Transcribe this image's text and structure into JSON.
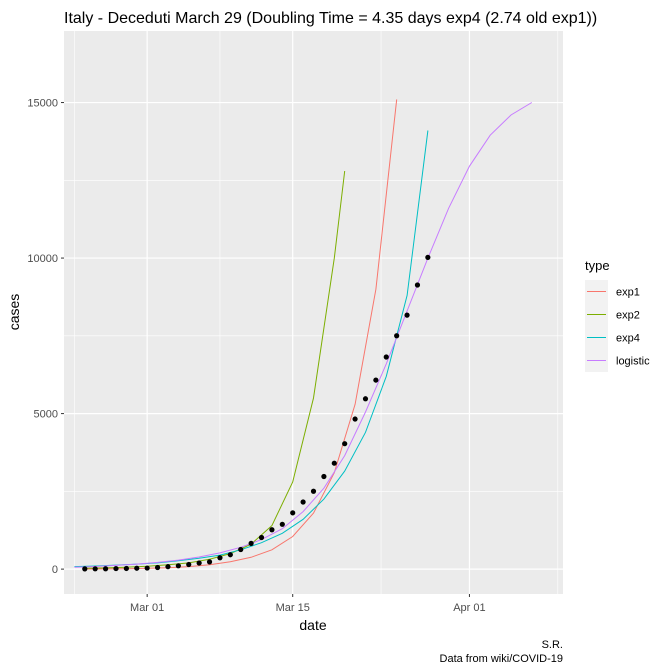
{
  "chart_data": {
    "type": "line",
    "title": "Italy - Deceduti March 29 (Doubling Time = 4.35 days exp4 (2.74 old exp1))",
    "xlabel": "date",
    "ylabel": "cases",
    "x_ticks": [
      {
        "label": "Mar 01",
        "date": "2020-03-01"
      },
      {
        "label": "Mar 15",
        "date": "2020-03-15"
      },
      {
        "label": "Apr 01",
        "date": "2020-04-01"
      }
    ],
    "y_ticks": [
      0,
      5000,
      10000,
      15000
    ],
    "xlim": [
      "2020-02-22",
      "2020-04-10"
    ],
    "ylim": [
      -800,
      17300
    ],
    "grid": true,
    "legend": {
      "title": "type",
      "position": "right"
    },
    "colors": {
      "panel_bg": "#ebebeb",
      "grid": "#ffffff",
      "exp1": "#F8766D",
      "exp2": "#7CAE00",
      "exp4": "#00BFC4",
      "logistic": "#C77CFF",
      "points": "#000000"
    },
    "series": [
      {
        "name": "exp1",
        "x": [
          "2020-02-24",
          "2020-02-26",
          "2020-02-28",
          "2020-03-01",
          "2020-03-03",
          "2020-03-05",
          "2020-03-07",
          "2020-03-09",
          "2020-03-11",
          "2020-03-13",
          "2020-03-15",
          "2020-03-17",
          "2020-03-19",
          "2020-03-21",
          "2020-03-23",
          "2020-03-25"
        ],
        "y": [
          5,
          8,
          14,
          25,
          45,
          80,
          140,
          240,
          380,
          620,
          1050,
          1800,
          3100,
          5300,
          9000,
          15100
        ]
      },
      {
        "name": "exp2",
        "x": [
          "2020-02-24",
          "2020-02-26",
          "2020-02-28",
          "2020-03-01",
          "2020-03-03",
          "2020-03-05",
          "2020-03-07",
          "2020-03-09",
          "2020-03-11",
          "2020-03-13",
          "2020-03-15",
          "2020-03-17",
          "2020-03-19",
          "2020-03-20"
        ],
        "y": [
          25,
          40,
          60,
          90,
          140,
          200,
          320,
          500,
          800,
          1400,
          2800,
          5500,
          10000,
          12800
        ]
      },
      {
        "name": "exp4",
        "x": [
          "2020-02-23",
          "2020-02-25",
          "2020-02-27",
          "2020-02-29",
          "2020-03-02",
          "2020-03-04",
          "2020-03-06",
          "2020-03-08",
          "2020-03-10",
          "2020-03-12",
          "2020-03-14",
          "2020-03-16",
          "2020-03-18",
          "2020-03-20",
          "2020-03-22",
          "2020-03-24",
          "2020-03-26",
          "2020-03-28"
        ],
        "y": [
          80,
          100,
          130,
          160,
          200,
          270,
          350,
          450,
          620,
          850,
          1150,
          1600,
          2250,
          3150,
          4400,
          6200,
          8800,
          14100
        ]
      },
      {
        "name": "logistic",
        "x": [
          "2020-02-23",
          "2020-02-25",
          "2020-02-27",
          "2020-02-29",
          "2020-03-02",
          "2020-03-04",
          "2020-03-06",
          "2020-03-08",
          "2020-03-10",
          "2020-03-12",
          "2020-03-14",
          "2020-03-16",
          "2020-03-18",
          "2020-03-20",
          "2020-03-22",
          "2020-03-24",
          "2020-03-26",
          "2020-03-28",
          "2020-03-30",
          "2020-04-01",
          "2020-04-03",
          "2020-04-05",
          "2020-04-07"
        ],
        "y": [
          60,
          85,
          120,
          160,
          215,
          290,
          390,
          520,
          700,
          950,
          1300,
          1850,
          2600,
          3650,
          5050,
          6600,
          8300,
          10000,
          11600,
          12950,
          13950,
          14600,
          15000
        ]
      },
      {
        "name": "observed",
        "x": [
          "2020-02-24",
          "2020-02-25",
          "2020-02-26",
          "2020-02-27",
          "2020-02-28",
          "2020-02-29",
          "2020-03-01",
          "2020-03-02",
          "2020-03-03",
          "2020-03-04",
          "2020-03-05",
          "2020-03-06",
          "2020-03-07",
          "2020-03-08",
          "2020-03-09",
          "2020-03-10",
          "2020-03-11",
          "2020-03-12",
          "2020-03-13",
          "2020-03-14",
          "2020-03-15",
          "2020-03-16",
          "2020-03-17",
          "2020-03-18",
          "2020-03-19",
          "2020-03-20",
          "2020-03-21",
          "2020-03-22",
          "2020-03-23",
          "2020-03-24",
          "2020-03-25",
          "2020-03-26",
          "2020-03-27",
          "2020-03-28"
        ],
        "y": [
          7,
          10,
          12,
          17,
          21,
          29,
          34,
          52,
          79,
          107,
          148,
          197,
          233,
          366,
          463,
          631,
          827,
          1016,
          1266,
          1441,
          1809,
          2158,
          2503,
          2978,
          3405,
          4032,
          4825,
          5476,
          6077,
          6820,
          7503,
          8165,
          9134,
          10023
        ]
      }
    ]
  },
  "caption": {
    "line1": "S.R.",
    "line2": "Data from wiki/COVID-19"
  }
}
